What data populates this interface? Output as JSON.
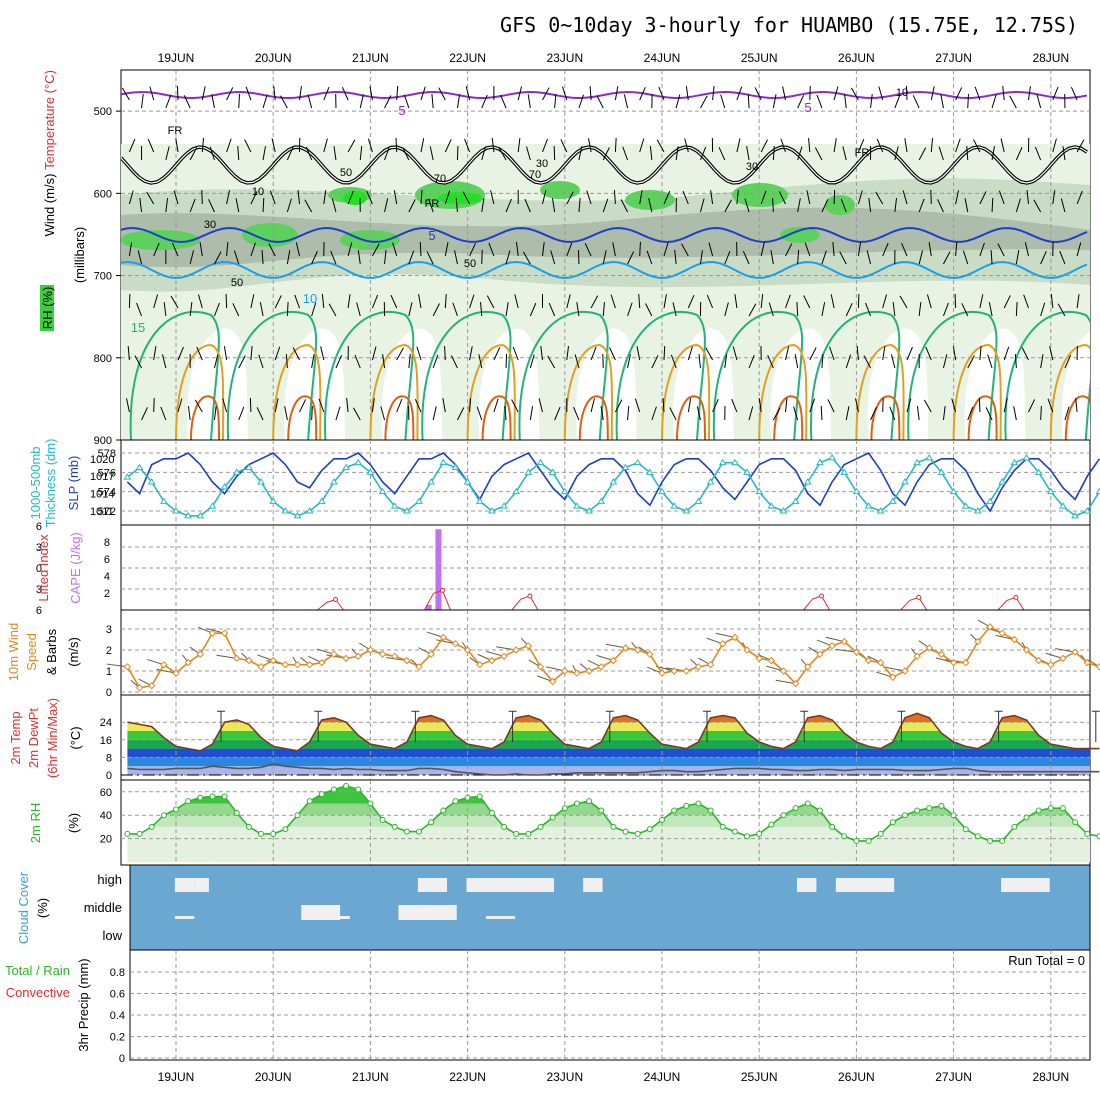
{
  "title": "GFS 0~10day 3-hourly for HUAMBO (15.75E, 12.75S)",
  "dates": [
    "19JUN",
    "20JUN",
    "21JUN",
    "22JUN",
    "23JUN",
    "24JUN",
    "25JUN",
    "26JUN",
    "27JUN",
    "28JUN"
  ],
  "colors": {
    "purple": "#8a2bc8",
    "blue": "#1e3fc8",
    "lightblue": "#1e9ee8",
    "green": "#22b27a",
    "orange": "#e0a020",
    "darkorange": "#e06010",
    "rh_green": "#3ccf3c",
    "slp": "#1b3fc0",
    "thick": "#28b8c8",
    "cape": "#c070f0",
    "li": "#e03030",
    "wind10": "#e08820",
    "cloud": "#6aa8d2",
    "rh2m": "#28b828"
  },
  "chart_data": [
    {
      "type": "contour",
      "title": "Upper air cross-section",
      "ylabel": "(millibars)",
      "label_lines": [
        "Wind (m/s)",
        "Temperature (°C)",
        "RH (%)"
      ],
      "yticks": [
        500,
        600,
        700,
        800,
        900
      ],
      "ylim": [
        900,
        450
      ],
      "contour_labels": [
        "5",
        "5",
        "5",
        "10",
        "15",
        "FR",
        "FR",
        "FR",
        "10",
        "30",
        "30",
        "50",
        "50",
        "70",
        "70",
        "10",
        "30",
        "50"
      ]
    },
    {
      "type": "line",
      "label_lines": [
        "1000-500mb",
        "Thickness (dm)",
        "SLP (mb)"
      ],
      "yticks_left": [
        572,
        574,
        576,
        578
      ],
      "yticks_right": [
        1011,
        1014,
        1017,
        1020
      ],
      "series": [
        {
          "name": "SLP (mb)",
          "values": [
            1016,
            1014,
            1019,
            1020,
            1020,
            1021,
            1019,
            1016,
            1014,
            1017,
            1019,
            1020,
            1021,
            1019,
            1016,
            1015,
            1018,
            1020,
            1020,
            1021,
            1019,
            1016,
            1014,
            1017,
            1020,
            1020,
            1021,
            1019,
            1016,
            1013,
            1017,
            1019,
            1020,
            1021,
            1018,
            1015,
            1013,
            1017,
            1019,
            1020,
            1020,
            1018,
            1014,
            1012,
            1016,
            1019,
            1020,
            1020,
            1018,
            1015,
            1013,
            1016,
            1019,
            1020,
            1020,
            1018,
            1014,
            1012,
            1016,
            1019,
            1020,
            1021,
            1018,
            1014,
            1012,
            1016,
            1019,
            1020,
            1020,
            1018,
            1014,
            1011,
            1015,
            1018,
            1020,
            1020,
            1018,
            1015,
            1013,
            1017,
            1020
          ]
        },
        {
          "name": "Thickness (dm)",
          "values": [
            575.5,
            576.5,
            575,
            573,
            572,
            571.5,
            571.5,
            572.5,
            574.5,
            576,
            576.5,
            575,
            573,
            572,
            571.5,
            572,
            573,
            575,
            576.5,
            577,
            576,
            574,
            572.5,
            572,
            573,
            575,
            577,
            576.5,
            575,
            573,
            572,
            572.5,
            574,
            576,
            577,
            576,
            574,
            572.5,
            572,
            573,
            575,
            576.5,
            577,
            576,
            574,
            572.5,
            572,
            573,
            575,
            577,
            577,
            576,
            574,
            572.5,
            572,
            573,
            575,
            577,
            577.5,
            576,
            574,
            572.5,
            572,
            573,
            575,
            577,
            577.5,
            576,
            574,
            572.5,
            572,
            573,
            575,
            577,
            577.5,
            576,
            574,
            572.5,
            571.5,
            572,
            574
          ]
        }
      ]
    },
    {
      "type": "bar",
      "label_lines": [
        "Lifted Index",
        "CAPE (J/kg)"
      ],
      "yticks_left": [
        -6,
        -3,
        0,
        3,
        6
      ],
      "yticks_right": [
        2,
        4,
        6,
        8
      ],
      "cape_bars": [
        {
          "day": 2.6,
          "value": 0.6
        },
        {
          "day": 2.7,
          "value": 9.5
        }
      ],
      "li_peaks": [
        {
          "day": 1.6,
          "value": 1.5
        },
        {
          "day": 2.7,
          "value": 2.8
        },
        {
          "day": 3.6,
          "value": 2.0
        },
        {
          "day": 6.6,
          "value": 2.0
        },
        {
          "day": 7.6,
          "value": 1.8
        },
        {
          "day": 8.6,
          "value": 1.8
        }
      ]
    },
    {
      "type": "line",
      "label_lines": [
        "10m Wind",
        "Speed",
        "& Barbs",
        "(m/s)"
      ],
      "yticks": [
        0,
        1,
        2,
        3
      ],
      "series": [
        {
          "name": "10m Wind Speed",
          "values": [
            1.2,
            0.2,
            0.3,
            1.3,
            0.9,
            1.4,
            1.8,
            2.8,
            2.8,
            1.6,
            1.5,
            1.2,
            1.5,
            1.3,
            1.3,
            1.3,
            1.4,
            1.8,
            1.6,
            1.7,
            2.0,
            1.8,
            1.7,
            1.5,
            1.2,
            1.8,
            2.6,
            2.3,
            2.0,
            1.3,
            1.5,
            1.7,
            2.0,
            2.2,
            1.2,
            0.5,
            1.0,
            0.9,
            1.0,
            1.2,
            1.5,
            2.1,
            2.0,
            1.8,
            0.9,
            1.0,
            1.0,
            1.2,
            1.3,
            2.3,
            2.6,
            2.0,
            1.6,
            1.5,
            1.0,
            0.4,
            1.2,
            1.8,
            2.2,
            2.4,
            1.9,
            1.5,
            1.4,
            0.7,
            1.0,
            1.7,
            2.1,
            1.8,
            1.4,
            1.4,
            2.4,
            3.1,
            2.8,
            2.5,
            2.0,
            1.5,
            1.3,
            1.6,
            1.9,
            1.4,
            1.2
          ]
        }
      ]
    },
    {
      "type": "area",
      "label_lines": [
        "2m Temp",
        "2m DewPt",
        "(6hr Min/Max)"
      ],
      "ylabel": "(°C)",
      "yticks": [
        0,
        8,
        16,
        24
      ],
      "series": [
        {
          "name": "2m Temp",
          "values": [
            24,
            23,
            22,
            17,
            13,
            12,
            11,
            14,
            24,
            25,
            23,
            17,
            13,
            12,
            11,
            15,
            25,
            26,
            24,
            18,
            14,
            13,
            12,
            15,
            26,
            27,
            25,
            18,
            14,
            13,
            12,
            15,
            26,
            27,
            25,
            19,
            14,
            13,
            12,
            15,
            26,
            27,
            25,
            19,
            14,
            13,
            12,
            15,
            26,
            27,
            26,
            19,
            15,
            13,
            12,
            15,
            26,
            27,
            25,
            19,
            15,
            13,
            12,
            15,
            26,
            28,
            26,
            19,
            15,
            13,
            12,
            15,
            26,
            27,
            25,
            18,
            14,
            13,
            12,
            12,
            12
          ]
        },
        {
          "name": "2m DewPt",
          "values": [
            3,
            2.5,
            2.5,
            2.5,
            3,
            3,
            3,
            4,
            3.5,
            3,
            3,
            3.5,
            5,
            4,
            3.5,
            3,
            3,
            2.5,
            3,
            2.5,
            2.5,
            2,
            2,
            2,
            3,
            3,
            2.5,
            1.5,
            1,
            0.5,
            0,
            0,
            0.5,
            0,
            0,
            0.5,
            0.5,
            1,
            1,
            1,
            1,
            1,
            1,
            1.5,
            2,
            2,
            1.5,
            1.5,
            2,
            2.5,
            3,
            3,
            3,
            2.5,
            2.5,
            2,
            2,
            2.5,
            2.5,
            2,
            2.5,
            2.5,
            2.5,
            2.5,
            2,
            2,
            2,
            2.5,
            3,
            3,
            2,
            1.5,
            1.5,
            1.5,
            1.5,
            1.5,
            1.5,
            1.5,
            1.5,
            1.5,
            1.5
          ]
        }
      ]
    },
    {
      "type": "area",
      "label_lines": [
        "2m RH"
      ],
      "ylabel": "(%)",
      "yticks": [
        20,
        40,
        60
      ],
      "series": [
        {
          "name": "2m RH",
          "values": [
            24,
            24,
            30,
            40,
            45,
            52,
            55,
            56,
            56,
            42,
            30,
            24,
            24,
            28,
            40,
            52,
            58,
            62,
            65,
            62,
            50,
            36,
            30,
            26,
            26,
            34,
            44,
            52,
            55,
            56,
            42,
            30,
            24,
            24,
            30,
            38,
            46,
            50,
            52,
            44,
            30,
            26,
            24,
            28,
            36,
            44,
            48,
            50,
            44,
            30,
            26,
            22,
            24,
            32,
            40,
            46,
            50,
            44,
            30,
            22,
            18,
            18,
            24,
            34,
            40,
            44,
            46,
            48,
            40,
            28,
            22,
            18,
            18,
            30,
            38,
            44,
            46,
            46,
            34,
            24,
            22
          ]
        }
      ]
    },
    {
      "type": "bar",
      "label_lines": [
        "Cloud Cover",
        "(%)"
      ],
      "ytick_labels": [
        "high",
        "middle",
        "low"
      ],
      "high_blocks": [
        [
          0.4,
          0.6
        ],
        [
          0.6,
          0.75
        ],
        [
          2.9,
          3.2
        ],
        [
          3.4,
          4.3
        ],
        [
          4.6,
          4.8
        ],
        [
          6.8,
          7.0
        ],
        [
          7.2,
          7.8
        ],
        [
          8.9,
          9.4
        ]
      ],
      "middle_blocks": [
        [
          1.7,
          2.1
        ],
        [
          2.7,
          3.3
        ]
      ],
      "low_blocks": [
        [
          0.4,
          0.6
        ],
        [
          2.0,
          2.2
        ],
        [
          3.6,
          3.9
        ]
      ]
    },
    {
      "type": "bar",
      "label_lines": [
        "Total / Rain",
        "Convective"
      ],
      "ylabel": "3hr Precip (mm)",
      "yticks": [
        "0",
        "0.2",
        "0.4",
        "0.6",
        "0.8"
      ],
      "run_total": "Run Total = 0",
      "values": []
    }
  ]
}
